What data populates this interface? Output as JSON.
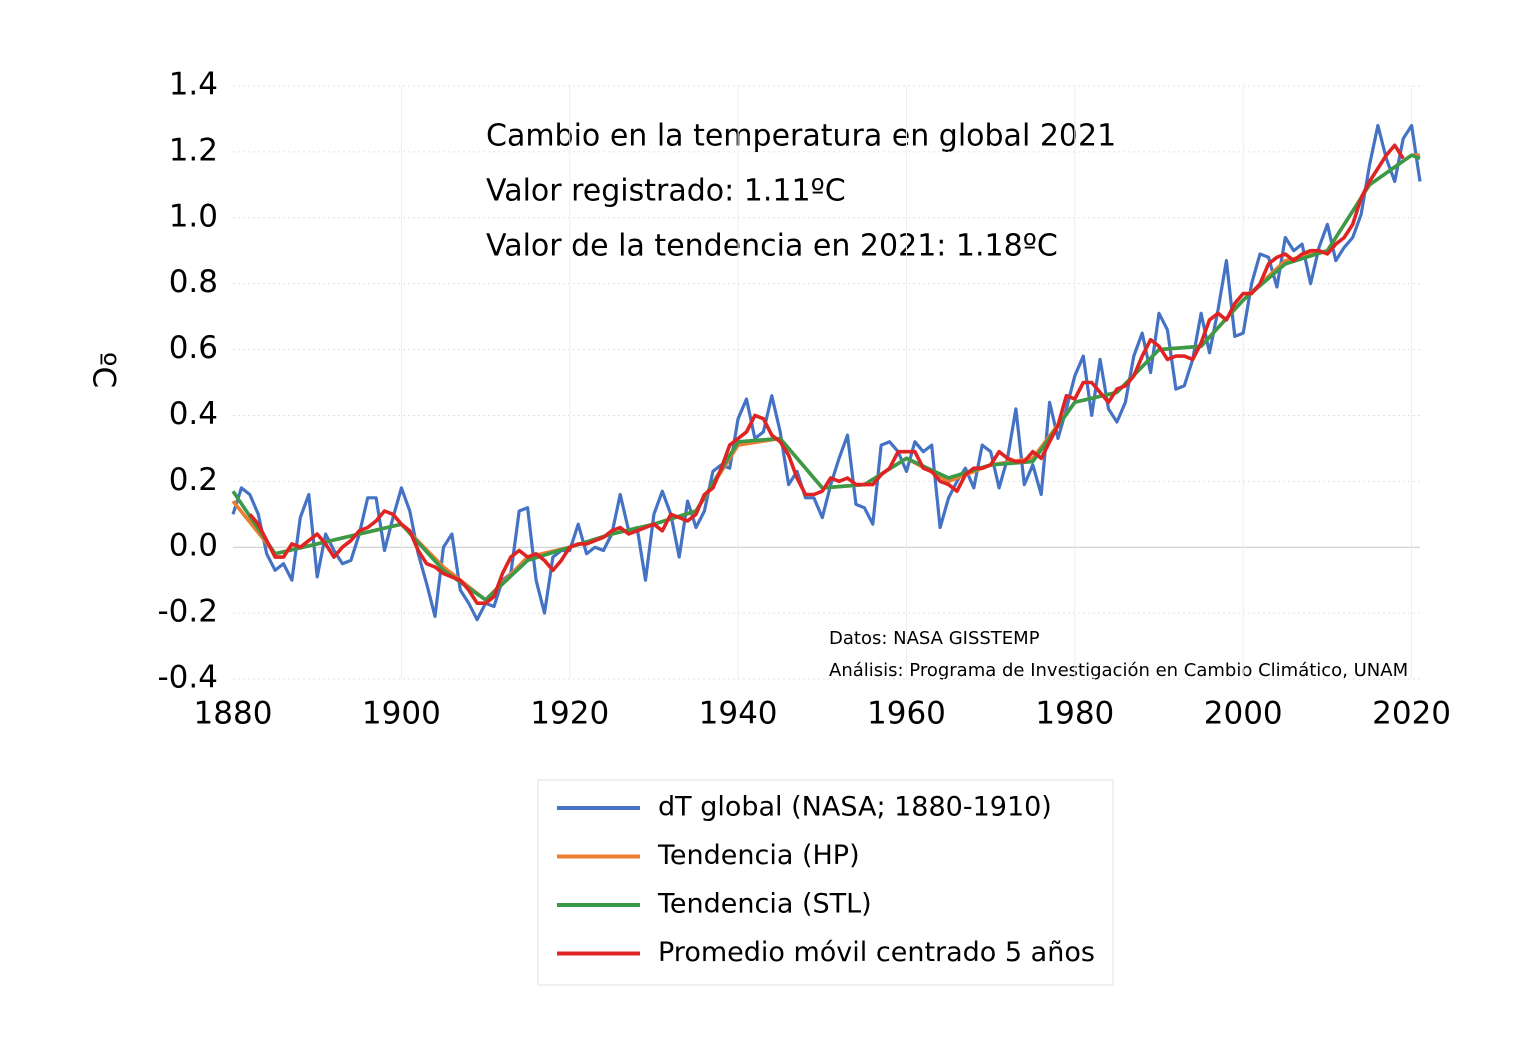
{
  "chart_data": {
    "type": "line",
    "ylabel": "ºC",
    "annotations": [
      "Cambio en la temperatura en global 2021",
      "Valor registrado: 1.11ºC",
      "Valor de la tendencia en 2021: 1.18ºC"
    ],
    "notes": [
      "Datos: NASA GISSTEMP",
      "Análisis: Programa de Investigación en Cambio Climático, UNAM"
    ],
    "xlim": [
      1880,
      2021
    ],
    "xticks": [
      1880,
      1900,
      1920,
      1940,
      1960,
      1980,
      2000,
      2020
    ],
    "ylim": [
      -0.4,
      1.4
    ],
    "yticks": [
      -0.4,
      -0.2,
      {
        "value": 0,
        "label": "0.0"
      },
      0.2,
      0.4,
      0.6,
      0.8,
      {
        "value": 1,
        "label": "1.0"
      },
      1.2,
      1.4
    ],
    "grid": true,
    "legend": "bottom",
    "series": [
      {
        "name": "dT global (NASA; 1880-1910)",
        "color": "#4472c4",
        "x": [
          1880,
          1881,
          1882,
          1883,
          1884,
          1885,
          1886,
          1887,
          1888,
          1889,
          1890,
          1891,
          1892,
          1893,
          1894,
          1895,
          1896,
          1897,
          1898,
          1899,
          1900,
          1901,
          1902,
          1903,
          1904,
          1905,
          1906,
          1907,
          1908,
          1909,
          1910,
          1911,
          1912,
          1913,
          1914,
          1915,
          1916,
          1917,
          1918,
          1919,
          1920,
          1921,
          1922,
          1923,
          1924,
          1925,
          1926,
          1927,
          1928,
          1929,
          1930,
          1931,
          1932,
          1933,
          1934,
          1935,
          1936,
          1937,
          1938,
          1939,
          1940,
          1941,
          1942,
          1943,
          1944,
          1945,
          1946,
          1947,
          1948,
          1949,
          1950,
          1951,
          1952,
          1953,
          1954,
          1955,
          1956,
          1957,
          1958,
          1959,
          1960,
          1961,
          1962,
          1963,
          1964,
          1965,
          1966,
          1967,
          1968,
          1969,
          1970,
          1971,
          1972,
          1973,
          1974,
          1975,
          1976,
          1977,
          1978,
          1979,
          1980,
          1981,
          1982,
          1983,
          1984,
          1985,
          1986,
          1987,
          1988,
          1989,
          1990,
          1991,
          1992,
          1993,
          1994,
          1995,
          1996,
          1997,
          1998,
          1999,
          2000,
          2001,
          2002,
          2003,
          2004,
          2005,
          2006,
          2007,
          2008,
          2009,
          2010,
          2011,
          2012,
          2013,
          2014,
          2015,
          2016,
          2017,
          2018,
          2019,
          2020,
          2021
        ],
        "values": [
          0.1,
          0.18,
          0.16,
          0.1,
          -0.02,
          -0.07,
          -0.05,
          -0.1,
          0.09,
          0.16,
          -0.09,
          0.04,
          -0.01,
          -0.05,
          -0.04,
          0.04,
          0.15,
          0.15,
          -0.01,
          0.09,
          0.18,
          0.11,
          -0.02,
          -0.11,
          -0.21,
          0.0,
          0.04,
          -0.13,
          -0.17,
          -0.22,
          -0.17,
          -0.18,
          -0.1,
          -0.08,
          0.11,
          0.12,
          -0.1,
          -0.2,
          -0.03,
          -0.01,
          -0.01,
          0.07,
          -0.02,
          0.0,
          -0.01,
          0.04,
          0.16,
          0.05,
          0.06,
          -0.1,
          0.1,
          0.17,
          0.1,
          -0.03,
          0.14,
          0.06,
          0.11,
          0.23,
          0.25,
          0.24,
          0.39,
          0.45,
          0.33,
          0.35,
          0.46,
          0.35,
          0.19,
          0.23,
          0.15,
          0.15,
          0.09,
          0.19,
          0.27,
          0.34,
          0.13,
          0.12,
          0.07,
          0.31,
          0.32,
          0.29,
          0.23,
          0.32,
          0.29,
          0.31,
          0.06,
          0.15,
          0.2,
          0.24,
          0.18,
          0.31,
          0.29,
          0.18,
          0.27,
          0.42,
          0.19,
          0.25,
          0.16,
          0.44,
          0.33,
          0.42,
          0.52,
          0.58,
          0.4,
          0.57,
          0.42,
          0.38,
          0.44,
          0.58,
          0.65,
          0.53,
          0.71,
          0.66,
          0.48,
          0.49,
          0.57,
          0.71,
          0.59,
          0.72,
          0.87,
          0.64,
          0.65,
          0.8,
          0.89,
          0.88,
          0.79,
          0.94,
          0.9,
          0.92,
          0.8,
          0.91,
          0.98,
          0.87,
          0.91,
          0.94,
          1.01,
          1.16,
          1.28,
          1.18,
          1.11,
          1.24,
          1.28,
          1.11
        ]
      },
      {
        "name": "Tendencia (HP)",
        "color": "#ed7d31",
        "x": [
          1880,
          1885,
          1890,
          1895,
          1900,
          1905,
          1910,
          1915,
          1920,
          1925,
          1930,
          1935,
          1940,
          1945,
          1950,
          1955,
          1960,
          1965,
          1970,
          1975,
          1980,
          1985,
          1990,
          1995,
          2000,
          2005,
          2010,
          2015,
          2020,
          2021
        ],
        "values": [
          0.14,
          -0.02,
          0.01,
          0.04,
          0.07,
          -0.06,
          -0.16,
          -0.03,
          0.0,
          0.04,
          0.07,
          0.11,
          0.31,
          0.33,
          0.18,
          0.19,
          0.27,
          0.2,
          0.25,
          0.27,
          0.44,
          0.47,
          0.6,
          0.61,
          0.75,
          0.87,
          0.9,
          1.1,
          1.19,
          1.19
        ]
      },
      {
        "name": "Tendencia (STL)",
        "color": "#3a9a48",
        "x": [
          1880,
          1885,
          1890,
          1895,
          1900,
          1905,
          1910,
          1915,
          1920,
          1925,
          1930,
          1935,
          1940,
          1945,
          1950,
          1955,
          1960,
          1965,
          1970,
          1975,
          1980,
          1985,
          1990,
          1995,
          2000,
          2005,
          2010,
          2015,
          2020,
          2021
        ],
        "values": [
          0.17,
          -0.02,
          0.01,
          0.04,
          0.07,
          -0.07,
          -0.16,
          -0.04,
          0.0,
          0.04,
          0.07,
          0.11,
          0.32,
          0.33,
          0.18,
          0.19,
          0.27,
          0.21,
          0.25,
          0.26,
          0.44,
          0.47,
          0.6,
          0.61,
          0.75,
          0.86,
          0.9,
          1.1,
          1.19,
          1.18
        ]
      },
      {
        "name": "Promedio móvil centrado 5 años",
        "color": "#e02424",
        "x": [
          1882,
          1883,
          1884,
          1885,
          1886,
          1887,
          1888,
          1889,
          1890,
          1891,
          1892,
          1893,
          1894,
          1895,
          1896,
          1897,
          1898,
          1899,
          1900,
          1901,
          1902,
          1903,
          1904,
          1905,
          1906,
          1907,
          1908,
          1909,
          1910,
          1911,
          1912,
          1913,
          1914,
          1915,
          1916,
          1917,
          1918,
          1919,
          1920,
          1921,
          1922,
          1923,
          1924,
          1925,
          1926,
          1927,
          1928,
          1929,
          1930,
          1931,
          1932,
          1933,
          1934,
          1935,
          1936,
          1937,
          1938,
          1939,
          1940,
          1941,
          1942,
          1943,
          1944,
          1945,
          1946,
          1947,
          1948,
          1949,
          1950,
          1951,
          1952,
          1953,
          1954,
          1955,
          1956,
          1957,
          1958,
          1959,
          1960,
          1961,
          1962,
          1963,
          1964,
          1965,
          1966,
          1967,
          1968,
          1969,
          1970,
          1971,
          1972,
          1973,
          1974,
          1975,
          1976,
          1977,
          1978,
          1979,
          1980,
          1981,
          1982,
          1983,
          1984,
          1985,
          1986,
          1987,
          1988,
          1989,
          1990,
          1991,
          1992,
          1993,
          1994,
          1995,
          1996,
          1997,
          1998,
          1999,
          2000,
          2001,
          2002,
          2003,
          2004,
          2005,
          2006,
          2007,
          2008,
          2009,
          2010,
          2011,
          2012,
          2013,
          2014,
          2015,
          2016,
          2017,
          2018,
          2019
        ],
        "values": [
          0.1,
          0.07,
          0.02,
          -0.03,
          -0.03,
          0.01,
          0.0,
          0.02,
          0.04,
          0.01,
          -0.03,
          0.0,
          0.02,
          0.05,
          0.06,
          0.08,
          0.11,
          0.1,
          0.07,
          0.05,
          -0.01,
          -0.05,
          -0.06,
          -0.08,
          -0.09,
          -0.1,
          -0.13,
          -0.17,
          -0.17,
          -0.15,
          -0.08,
          -0.03,
          -0.01,
          -0.03,
          -0.02,
          -0.04,
          -0.07,
          -0.04,
          0.0,
          0.01,
          0.01,
          0.02,
          0.03,
          0.05,
          0.06,
          0.04,
          0.05,
          0.06,
          0.07,
          0.05,
          0.1,
          0.09,
          0.08,
          0.1,
          0.16,
          0.18,
          0.24,
          0.31,
          0.33,
          0.35,
          0.4,
          0.39,
          0.34,
          0.32,
          0.28,
          0.21,
          0.16,
          0.16,
          0.17,
          0.21,
          0.2,
          0.21,
          0.19,
          0.19,
          0.19,
          0.22,
          0.24,
          0.29,
          0.29,
          0.29,
          0.24,
          0.23,
          0.2,
          0.19,
          0.17,
          0.22,
          0.24,
          0.24,
          0.25,
          0.29,
          0.27,
          0.26,
          0.26,
          0.29,
          0.27,
          0.32,
          0.37,
          0.46,
          0.45,
          0.5,
          0.5,
          0.47,
          0.44,
          0.48,
          0.49,
          0.52,
          0.58,
          0.63,
          0.61,
          0.57,
          0.58,
          0.58,
          0.57,
          0.62,
          0.69,
          0.71,
          0.69,
          0.74,
          0.77,
          0.77,
          0.8,
          0.86,
          0.88,
          0.89,
          0.87,
          0.89,
          0.9,
          0.9,
          0.89,
          0.92,
          0.94,
          0.98,
          1.06,
          1.11,
          1.15,
          1.19,
          1.22,
          1.18
        ]
      }
    ]
  }
}
